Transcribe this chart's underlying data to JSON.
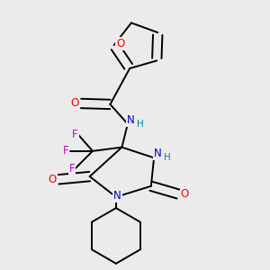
{
  "background_color": "#ebebeb",
  "bond_color": "#000000",
  "atom_colors": {
    "O": "#ff0000",
    "N": "#0000cc",
    "F": "#cc00cc",
    "H": "#008888",
    "C": "#000000"
  }
}
